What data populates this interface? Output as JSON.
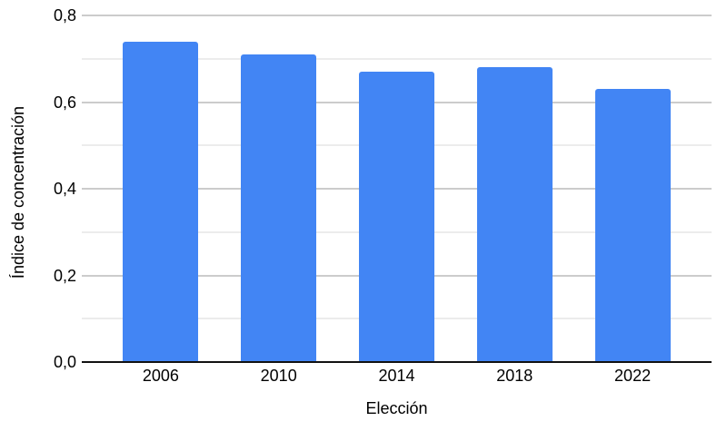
{
  "chart_data": {
    "type": "bar",
    "categories": [
      "2006",
      "2010",
      "2014",
      "2018",
      "2022"
    ],
    "values": [
      0.74,
      0.71,
      0.67,
      0.68,
      0.63
    ],
    "xlabel": "Elección",
    "ylabel": "Índice de concentración",
    "ylim": [
      0,
      0.8
    ],
    "y_major_ticks": [
      0,
      0.2,
      0.4,
      0.6,
      0.8
    ],
    "y_tick_labels": [
      "0,0",
      "0,2",
      "0,4",
      "0,6",
      "0,8"
    ],
    "y_minor_ticks": [
      0.1,
      0.3,
      0.5,
      0.7
    ],
    "decimal_separator": ",",
    "grid": true,
    "legend": "none",
    "colors": {
      "bar": "#4285f4",
      "major_gridline": "#cccccc",
      "minor_gridline": "#ececec",
      "baseline": "#111111",
      "text": "#000000",
      "background": "#ffffff"
    }
  }
}
